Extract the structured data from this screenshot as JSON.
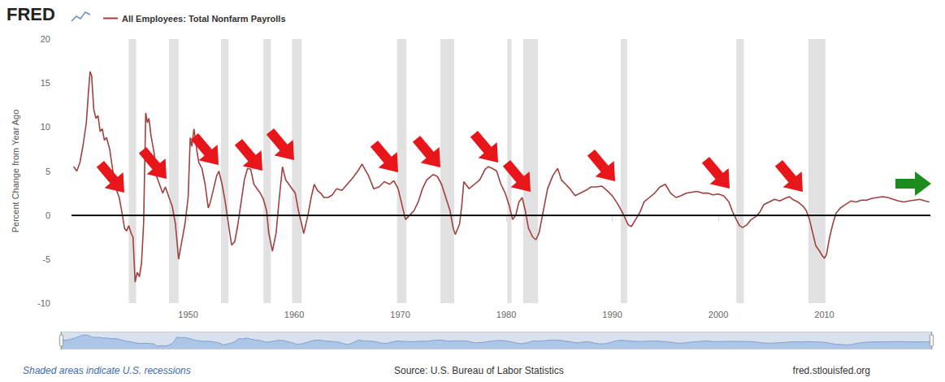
{
  "chart_data": {
    "type": "line",
    "logo": "FRED",
    "ylabel": "Percent Change from Year Ago",
    "caption": "Shaded areas indicate U.S. recessions",
    "source": "Source: U.S. Bureau of Labor Statistics",
    "site": "fred.stlouisfed.org",
    "legend": "top-left",
    "grid": false,
    "xlim": [
      1939,
      2020
    ],
    "xticks": [
      1950,
      1960,
      1970,
      1980,
      1990,
      2000,
      2010
    ],
    "ylim": [
      -10,
      20
    ],
    "yticks": [
      -10,
      -5,
      0,
      5,
      10,
      15,
      20
    ],
    "hline": 0,
    "recessions": [
      [
        1944.4,
        1945.1
      ],
      [
        1948.2,
        1949.1
      ],
      [
        1953.1,
        1953.8
      ],
      [
        1957.1,
        1957.8
      ],
      [
        1959.8,
        1960.7
      ],
      [
        1969.7,
        1970.6
      ],
      [
        1973.8,
        1975.1
      ],
      [
        1980.1,
        1980.5
      ],
      [
        1981.6,
        1983.0
      ],
      [
        1990.8,
        1991.4
      ],
      [
        2001.7,
        2002.4
      ],
      [
        2008.5,
        2010.1
      ]
    ],
    "x": [
      1939.2,
      1939.5,
      1939.8,
      1940.1,
      1940.4,
      1940.6,
      1940.75,
      1940.9,
      1941.1,
      1941.3,
      1941.5,
      1941.7,
      1941.9,
      1942.1,
      1942.3,
      1942.6,
      1942.9,
      1943.2,
      1943.5,
      1943.8,
      1944.0,
      1944.2,
      1944.4,
      1944.6,
      1944.8,
      1945.0,
      1945.2,
      1945.4,
      1945.6,
      1945.8,
      1946.0,
      1946.15,
      1946.3,
      1946.5,
      1946.8,
      1947.0,
      1947.3,
      1947.6,
      1947.85,
      1948.2,
      1948.5,
      1948.8,
      1949.1,
      1949.4,
      1949.7,
      1950.0,
      1950.2,
      1950.35,
      1950.55,
      1950.8,
      1951.0,
      1951.3,
      1951.6,
      1951.9,
      1952.1,
      1952.4,
      1952.7,
      1952.9,
      1953.2,
      1953.5,
      1953.8,
      1954.1,
      1954.4,
      1954.7,
      1955.0,
      1955.3,
      1955.6,
      1955.9,
      1956.2,
      1956.5,
      1956.8,
      1957.1,
      1957.4,
      1957.6,
      1957.95,
      1958.3,
      1958.6,
      1958.9,
      1959.2,
      1959.5,
      1959.8,
      1960.1,
      1960.4,
      1960.7,
      1960.9,
      1961.3,
      1961.6,
      1961.9,
      1962.2,
      1962.5,
      1962.8,
      1963.2,
      1963.6,
      1964.0,
      1964.5,
      1965.0,
      1965.5,
      1966.0,
      1966.4,
      1967.0,
      1967.5,
      1968.0,
      1968.5,
      1969.0,
      1969.4,
      1969.8,
      1970.2,
      1970.5,
      1970.9,
      1971.3,
      1971.7,
      1972.1,
      1972.5,
      1973.1,
      1973.5,
      1973.9,
      1974.3,
      1974.7,
      1975.0,
      1975.2,
      1975.6,
      1975.8,
      1976.0,
      1976.5,
      1977.0,
      1977.5,
      1978.0,
      1978.3,
      1978.7,
      1979.1,
      1979.5,
      1979.9,
      1980.3,
      1980.6,
      1980.9,
      1981.2,
      1981.5,
      1981.8,
      1982.1,
      1982.5,
      1982.8,
      1983.1,
      1983.5,
      1983.9,
      1984.4,
      1984.85,
      1985.2,
      1985.6,
      1986.0,
      1986.5,
      1987.0,
      1987.5,
      1988.0,
      1988.5,
      1989.0,
      1989.5,
      1990.0,
      1990.5,
      1991.0,
      1991.5,
      1991.8,
      1992.2,
      1992.6,
      1993.0,
      1993.5,
      1994.0,
      1994.5,
      1995.0,
      1995.5,
      1996.0,
      1996.5,
      1997.0,
      1997.5,
      1998.0,
      1998.5,
      1999.0,
      1999.5,
      2000.0,
      2000.5,
      2001.0,
      2001.3,
      2001.7,
      2002.0,
      2002.3,
      2002.7,
      2003.1,
      2003.5,
      2003.9,
      2004.3,
      2004.8,
      2005.3,
      2005.8,
      2006.3,
      2006.7,
      2007.0,
      2007.5,
      2008.0,
      2008.3,
      2008.6,
      2008.9,
      2009.2,
      2009.5,
      2009.8,
      2010.0,
      2010.2,
      2010.5,
      2010.8,
      2011.1,
      2011.5,
      2012.0,
      2012.5,
      2013.0,
      2013.5,
      2014.0,
      2014.5,
      2015.0,
      2015.5,
      2016.0,
      2016.5,
      2017.0,
      2017.5,
      2018.0,
      2018.5,
      2019.0,
      2019.5,
      2019.9
    ],
    "series": [
      {
        "name": "All Employees: Total Nonfarm Payrolls",
        "color": "#a0413f",
        "values": [
          5.5,
          5.0,
          6.0,
          8.0,
          10.5,
          14.0,
          16.3,
          15.8,
          12.0,
          11.0,
          11.3,
          9.5,
          9.8,
          8.5,
          8.8,
          7.5,
          5.0,
          3.0,
          2.0,
          0.0,
          -1.5,
          -1.8,
          -1.2,
          -2.0,
          -2.5,
          -7.6,
          -6.5,
          -7.0,
          -5.5,
          -1.0,
          11.6,
          10.5,
          11.0,
          9.0,
          7.0,
          4.5,
          3.5,
          2.5,
          3.2,
          2.0,
          1.0,
          -1.0,
          -5.0,
          -3.0,
          -1.0,
          2.0,
          8.8,
          7.8,
          9.8,
          7.5,
          6.0,
          5.3,
          3.5,
          0.8,
          1.5,
          3.0,
          4.5,
          5.0,
          3.5,
          1.5,
          -1.0,
          -3.4,
          -3.0,
          -1.0,
          1.5,
          4.0,
          5.3,
          5.2,
          3.5,
          3.0,
          2.5,
          1.8,
          0.5,
          -2.0,
          -4.1,
          -2.0,
          2.0,
          5.5,
          4.0,
          3.5,
          3.0,
          2.5,
          0.5,
          -1.0,
          -2.1,
          0.0,
          2.0,
          3.5,
          2.8,
          2.5,
          2.0,
          2.0,
          2.3,
          3.0,
          2.8,
          3.5,
          4.2,
          5.0,
          5.8,
          4.5,
          3.0,
          3.2,
          3.8,
          3.5,
          3.9,
          3.0,
          1.0,
          -0.5,
          0.0,
          0.5,
          1.5,
          3.0,
          4.0,
          4.6,
          4.4,
          3.5,
          2.0,
          0.5,
          -1.5,
          -2.2,
          -1.0,
          1.0,
          3.8,
          3.0,
          3.5,
          4.0,
          5.2,
          5.5,
          5.3,
          5.0,
          3.5,
          2.5,
          1.0,
          -0.5,
          0.0,
          1.5,
          2.0,
          0.5,
          -1.5,
          -2.5,
          -2.8,
          -2.0,
          0.5,
          3.0,
          4.5,
          5.3,
          4.0,
          3.5,
          3.0,
          2.2,
          2.5,
          2.8,
          3.2,
          3.2,
          3.3,
          2.8,
          2.2,
          1.3,
          0.2,
          -1.1,
          -1.3,
          -0.5,
          0.3,
          1.5,
          2.0,
          2.5,
          3.2,
          3.5,
          2.5,
          2.0,
          2.2,
          2.5,
          2.6,
          2.7,
          2.5,
          2.5,
          2.3,
          2.4,
          2.2,
          1.5,
          0.5,
          -0.5,
          -1.2,
          -1.4,
          -1.1,
          -0.5,
          -0.2,
          0.3,
          1.2,
          1.5,
          1.8,
          1.6,
          1.9,
          2.1,
          1.8,
          1.5,
          1.0,
          0.5,
          -0.5,
          -2.0,
          -3.5,
          -4.0,
          -4.6,
          -4.9,
          -4.5,
          -2.5,
          -1.0,
          0.2,
          0.8,
          1.2,
          1.6,
          1.5,
          1.7,
          1.7,
          1.9,
          2.0,
          2.1,
          2.0,
          1.8,
          1.6,
          1.5,
          1.6,
          1.7,
          1.8,
          1.6,
          1.5
        ]
      }
    ]
  }
}
